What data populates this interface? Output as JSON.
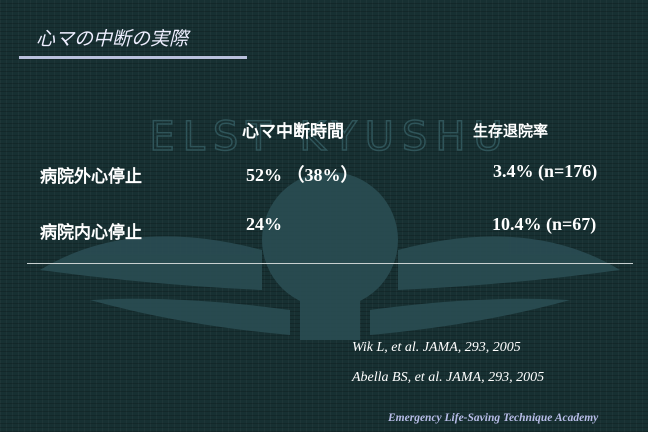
{
  "slide": {
    "title": "心マの中断の実際",
    "columns": [
      "心マ中断時間",
      "生存退院率"
    ],
    "rows": [
      {
        "label": "病院外心停止",
        "interruption": "52% （38%）",
        "survival": "3.4% (n=176)"
      },
      {
        "label": "病院内心停止",
        "interruption": "24%",
        "survival": "10.4% (n=67)"
      }
    ],
    "references": [
      "Wik L, et al. JAMA, 293, 2005",
      "Abella BS, et al. JAMA, 293, 2005"
    ],
    "footer": "Emergency Life-Saving Technique Academy",
    "watermark_text": "ELST KYUSHU"
  },
  "colors": {
    "background": "#173032",
    "title_rule": "#b8c0dc",
    "footer": "#b8bde8"
  }
}
